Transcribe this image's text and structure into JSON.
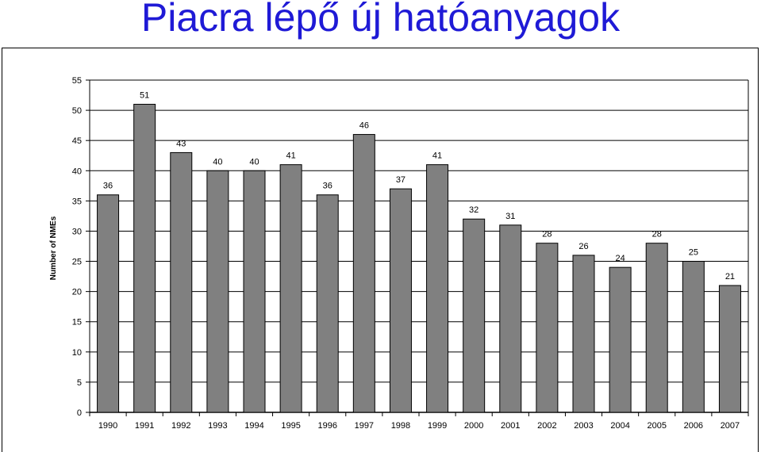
{
  "slide": {
    "title": "Piacra lépő új hatóanyagok"
  },
  "chart_data": {
    "type": "bar",
    "title": "",
    "xlabel": "",
    "ylabel": "Number of NMEs",
    "ylim": [
      0,
      55
    ],
    "yticks": [
      0,
      5,
      10,
      15,
      20,
      25,
      30,
      35,
      40,
      45,
      50,
      55
    ],
    "grid": true,
    "categories": [
      "1990",
      "1991",
      "1992",
      "1993",
      "1994",
      "1995",
      "1996",
      "1997",
      "1998",
      "1999",
      "2000",
      "2001",
      "2002",
      "2003",
      "2004",
      "2005",
      "2006",
      "2007"
    ],
    "values": [
      36,
      51,
      43,
      40,
      40,
      41,
      36,
      46,
      37,
      41,
      32,
      31,
      28,
      26,
      24,
      28,
      25,
      21
    ],
    "bar_color": "#808080"
  }
}
